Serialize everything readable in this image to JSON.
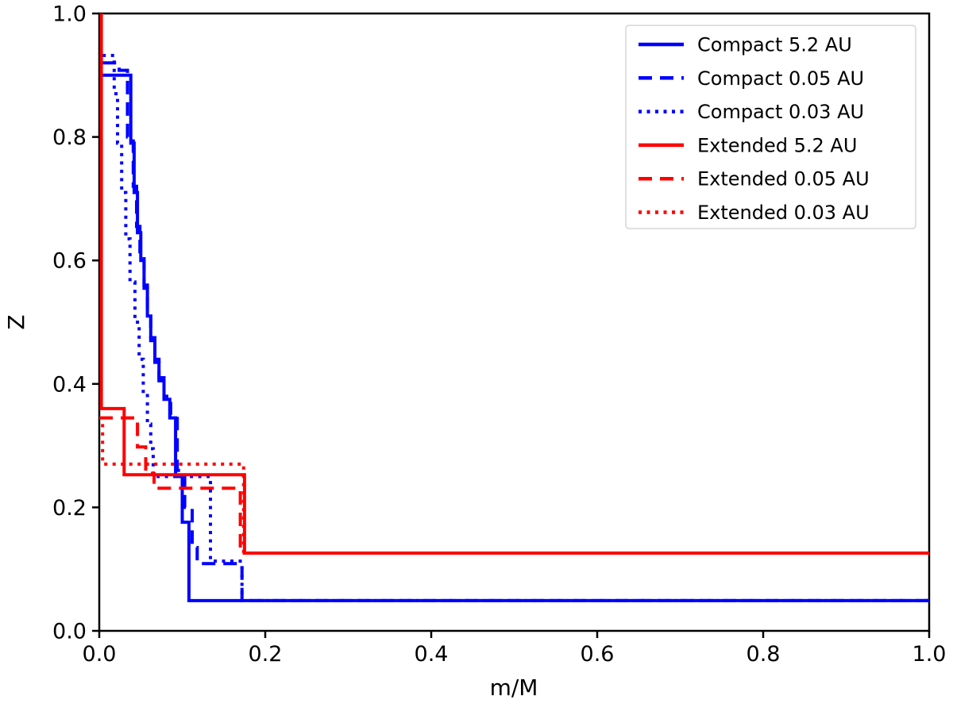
{
  "figure": {
    "background": "#ffffff",
    "frame_color": "#000000"
  },
  "chart_data": {
    "type": "line",
    "subtype": "step",
    "title": "",
    "xlabel": "m/M",
    "ylabel": "Z",
    "xlim": [
      0.0,
      1.0
    ],
    "ylim": [
      0.0,
      1.0
    ],
    "grid": false,
    "xticks": [
      0.0,
      0.2,
      0.4,
      0.6,
      0.8,
      1.0
    ],
    "yticks": [
      0.0,
      0.2,
      0.4,
      0.6,
      0.8,
      1.0
    ],
    "xtick_labels": [
      "0.0",
      "0.2",
      "0.4",
      "0.6",
      "0.8",
      "1.0"
    ],
    "ytick_labels": [
      "0.0",
      "0.2",
      "0.4",
      "0.6",
      "0.8",
      "1.0"
    ],
    "colors": {
      "compact": "#0000ff",
      "extended": "#ff0000"
    },
    "legend": {
      "position": "upper right"
    },
    "series": [
      {
        "name": "Compact 5.2 AU",
        "color": "#0000ff",
        "linestyle": "solid",
        "points": [
          [
            0.004,
            0.9
          ],
          [
            0.038,
            0.9
          ],
          [
            0.038,
            0.79
          ],
          [
            0.042,
            0.79
          ],
          [
            0.042,
            0.71
          ],
          [
            0.046,
            0.71
          ],
          [
            0.046,
            0.645
          ],
          [
            0.05,
            0.645
          ],
          [
            0.05,
            0.6
          ],
          [
            0.054,
            0.6
          ],
          [
            0.054,
            0.555
          ],
          [
            0.058,
            0.555
          ],
          [
            0.058,
            0.51
          ],
          [
            0.062,
            0.51
          ],
          [
            0.062,
            0.47
          ],
          [
            0.067,
            0.47
          ],
          [
            0.067,
            0.435
          ],
          [
            0.072,
            0.435
          ],
          [
            0.072,
            0.405
          ],
          [
            0.078,
            0.405
          ],
          [
            0.078,
            0.375
          ],
          [
            0.085,
            0.375
          ],
          [
            0.085,
            0.345
          ],
          [
            0.092,
            0.345
          ],
          [
            0.092,
            0.25
          ],
          [
            0.1,
            0.25
          ],
          [
            0.1,
            0.176
          ],
          [
            0.108,
            0.176
          ],
          [
            0.108,
            0.049
          ],
          [
            1.0,
            0.049
          ]
        ]
      },
      {
        "name": "Compact 0.05 AU",
        "color": "#0000ff",
        "linestyle": "dashed",
        "points": [
          [
            0.004,
            0.92
          ],
          [
            0.024,
            0.92
          ],
          [
            0.024,
            0.908
          ],
          [
            0.034,
            0.908
          ],
          [
            0.034,
            0.8
          ],
          [
            0.041,
            0.8
          ],
          [
            0.041,
            0.72
          ],
          [
            0.045,
            0.72
          ],
          [
            0.045,
            0.655
          ],
          [
            0.049,
            0.655
          ],
          [
            0.049,
            0.61
          ],
          [
            0.054,
            0.61
          ],
          [
            0.054,
            0.56
          ],
          [
            0.058,
            0.56
          ],
          [
            0.058,
            0.515
          ],
          [
            0.062,
            0.515
          ],
          [
            0.062,
            0.475
          ],
          [
            0.067,
            0.475
          ],
          [
            0.067,
            0.44
          ],
          [
            0.072,
            0.44
          ],
          [
            0.072,
            0.41
          ],
          [
            0.078,
            0.41
          ],
          [
            0.078,
            0.38
          ],
          [
            0.086,
            0.38
          ],
          [
            0.086,
            0.35
          ],
          [
            0.094,
            0.35
          ],
          [
            0.094,
            0.26
          ],
          [
            0.103,
            0.26
          ],
          [
            0.103,
            0.2
          ],
          [
            0.112,
            0.2
          ],
          [
            0.112,
            0.135
          ],
          [
            0.118,
            0.135
          ],
          [
            0.118,
            0.109
          ],
          [
            0.172,
            0.109
          ],
          [
            0.172,
            0.049
          ],
          [
            1.0,
            0.049
          ]
        ]
      },
      {
        "name": "Compact 0.03 AU",
        "color": "#0000ff",
        "linestyle": "dotted",
        "points": [
          [
            0.004,
            0.932
          ],
          [
            0.018,
            0.932
          ],
          [
            0.018,
            0.87
          ],
          [
            0.022,
            0.87
          ],
          [
            0.022,
            0.79
          ],
          [
            0.027,
            0.79
          ],
          [
            0.027,
            0.71
          ],
          [
            0.032,
            0.71
          ],
          [
            0.032,
            0.635
          ],
          [
            0.037,
            0.635
          ],
          [
            0.037,
            0.565
          ],
          [
            0.043,
            0.565
          ],
          [
            0.043,
            0.5
          ],
          [
            0.048,
            0.5
          ],
          [
            0.048,
            0.44
          ],
          [
            0.053,
            0.44
          ],
          [
            0.053,
            0.385
          ],
          [
            0.058,
            0.385
          ],
          [
            0.058,
            0.335
          ],
          [
            0.062,
            0.335
          ],
          [
            0.062,
            0.295
          ],
          [
            0.065,
            0.295
          ],
          [
            0.065,
            0.25
          ],
          [
            0.134,
            0.25
          ],
          [
            0.134,
            0.113
          ],
          [
            0.172,
            0.113
          ],
          [
            0.172,
            0.049
          ],
          [
            1.0,
            0.049
          ]
        ]
      },
      {
        "name": "Extended 5.2 AU",
        "color": "#ff0000",
        "linestyle": "solid",
        "points": [
          [
            0.0025,
            1.0
          ],
          [
            0.0025,
            0.36
          ],
          [
            0.03,
            0.36
          ],
          [
            0.03,
            0.253
          ],
          [
            0.175,
            0.253
          ],
          [
            0.175,
            0.126
          ],
          [
            1.0,
            0.126
          ]
        ]
      },
      {
        "name": "Extended 0.05 AU",
        "color": "#ff0000",
        "linestyle": "dashed",
        "points": [
          [
            0.0,
            0.345
          ],
          [
            0.046,
            0.345
          ],
          [
            0.046,
            0.298
          ],
          [
            0.056,
            0.298
          ],
          [
            0.056,
            0.255
          ],
          [
            0.066,
            0.255
          ],
          [
            0.066,
            0.231
          ],
          [
            0.17,
            0.231
          ],
          [
            0.17,
            0.126
          ],
          [
            1.0,
            0.126
          ]
        ]
      },
      {
        "name": "Extended 0.03 AU",
        "color": "#ff0000",
        "linestyle": "dotted",
        "points": [
          [
            0.004,
            0.335
          ],
          [
            0.004,
            0.27
          ],
          [
            0.174,
            0.27
          ],
          [
            0.174,
            0.126
          ],
          [
            1.0,
            0.126
          ]
        ]
      }
    ]
  }
}
